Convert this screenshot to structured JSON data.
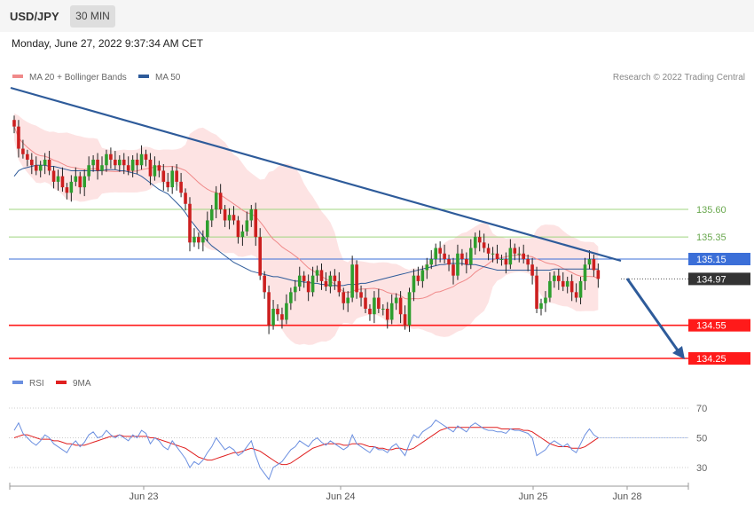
{
  "header": {
    "symbol": "USD/JPY",
    "timeframe": "30 MIN",
    "datetime": "Monday, June 27, 2022 9:37:34 AM CET"
  },
  "colors": {
    "candle_up": "#2e9e2e",
    "candle_down": "#cc1f1f",
    "bollinger_fill": "#fde3e3",
    "ma20": "#f08a8a",
    "ma50": "#2e5b9a",
    "trendline": "#2e5b9a",
    "resistance": "#9fd47f",
    "support": "#ff1a1a",
    "pivot": "#3b6fd8",
    "rsi": "#6b8fe0",
    "rsi_ma": "#e02020",
    "axis_text": "#666666"
  },
  "chart_data": [
    {
      "type": "candlestick",
      "title": "",
      "legend": [
        {
          "label": "MA 20 + Bollinger Bands",
          "color": "#f08a8a"
        },
        {
          "label": "MA 50",
          "color": "#2e5b9a"
        }
      ],
      "credit": "Research © 2022 Trading Central",
      "x_ticks": [
        "Jun 23",
        "Jun 24",
        "Jun 25",
        "Jun 28"
      ],
      "ylim": [
        134.2,
        136.55
      ],
      "levels": [
        {
          "label": "135.60",
          "value": 135.6,
          "kind": "resistance"
        },
        {
          "label": "135.35",
          "value": 135.35,
          "kind": "resistance"
        },
        {
          "label": "135.15",
          "value": 135.15,
          "kind": "pivot"
        },
        {
          "label": "134.97",
          "value": 134.97,
          "kind": "last"
        },
        {
          "label": "134.55",
          "value": 134.55,
          "kind": "support"
        },
        {
          "label": "134.25",
          "value": 134.25,
          "kind": "support"
        }
      ],
      "series": {
        "close": [
          136.35,
          136.15,
          136.1,
          136.05,
          136.0,
          135.95,
          136.0,
          136.05,
          135.95,
          135.85,
          135.9,
          135.8,
          135.75,
          135.85,
          135.9,
          135.8,
          135.9,
          136.0,
          136.05,
          135.95,
          136.0,
          136.1,
          136.05,
          136.0,
          136.05,
          136.0,
          135.95,
          136.05,
          136.0,
          136.1,
          136.05,
          135.9,
          136.0,
          135.95,
          135.85,
          135.8,
          135.95,
          135.85,
          135.75,
          135.65,
          135.3,
          135.35,
          135.3,
          135.35,
          135.5,
          135.6,
          135.75,
          135.6,
          135.5,
          135.55,
          135.5,
          135.35,
          135.4,
          135.5,
          135.6,
          135.35,
          135.0,
          134.85,
          134.55,
          134.7,
          134.65,
          134.6,
          134.75,
          134.85,
          134.9,
          135.0,
          134.95,
          134.85,
          135.0,
          135.05,
          134.95,
          134.9,
          135.0,
          134.95,
          134.85,
          134.75,
          134.8,
          135.1,
          134.85,
          134.8,
          134.7,
          134.65,
          134.8,
          134.7,
          134.7,
          134.6,
          134.75,
          134.8,
          134.65,
          134.55,
          134.85,
          135.0,
          134.95,
          135.05,
          135.1,
          135.15,
          135.25,
          135.2,
          135.15,
          135.1,
          135.0,
          135.2,
          135.15,
          135.1,
          135.25,
          135.35,
          135.3,
          135.25,
          135.2,
          135.2,
          135.15,
          135.15,
          135.1,
          135.25,
          135.2,
          135.2,
          135.15,
          135.1,
          135.0,
          134.7,
          134.75,
          134.8,
          134.95,
          135.0,
          134.95,
          134.9,
          134.95,
          134.85,
          134.8,
          134.95,
          135.1,
          135.15,
          135.05,
          134.97
        ],
        "ma50": [
          135.9,
          135.95,
          135.97,
          135.98,
          135.99,
          136.0,
          136.0,
          136.0,
          135.99,
          135.99,
          135.98,
          135.97,
          135.96,
          135.95,
          135.95,
          135.95,
          135.95,
          135.95,
          135.95,
          135.95,
          135.95,
          135.96,
          135.96,
          135.96,
          135.95,
          135.95,
          135.94,
          135.93,
          135.92,
          135.9,
          135.87,
          135.84,
          135.81,
          135.78,
          135.76,
          135.74,
          135.7,
          135.66,
          135.62,
          135.57,
          135.51,
          135.46,
          135.41,
          135.36,
          135.31,
          135.27,
          135.24,
          135.21,
          135.18,
          135.15,
          135.12,
          135.1,
          135.08,
          135.06,
          135.04,
          135.03,
          135.02,
          135.01,
          135.0,
          134.99,
          134.99,
          134.98,
          134.97,
          134.96,
          134.95,
          134.95,
          134.94,
          134.94,
          134.93,
          134.93,
          134.92,
          134.92,
          134.91,
          134.91,
          134.91,
          134.91,
          134.92,
          134.92,
          134.92,
          134.93,
          134.93,
          134.94,
          134.95,
          134.96,
          134.97,
          134.98,
          134.99,
          135.0,
          135.01,
          135.02,
          135.03,
          135.04,
          135.05,
          135.06,
          135.07,
          135.08,
          135.09,
          135.1,
          135.1,
          135.11,
          135.11,
          135.11,
          135.11,
          135.1,
          135.1,
          135.1,
          135.09,
          135.08,
          135.07,
          135.06,
          135.05,
          135.05,
          135.05,
          135.05,
          135.05,
          135.05,
          135.05,
          135.05,
          135.05,
          135.05,
          135.05,
          135.05,
          135.05,
          135.06,
          135.06,
          135.06,
          135.06,
          135.06,
          135.06,
          135.06,
          135.06,
          135.06,
          135.06,
          135.06
        ],
        "rsi": [
          55,
          60,
          53,
          50,
          47,
          45,
          48,
          52,
          50,
          46,
          44,
          42,
          40,
          45,
          48,
          44,
          47,
          52,
          54,
          50,
          51,
          55,
          52,
          50,
          52,
          50,
          48,
          52,
          50,
          55,
          53,
          46,
          50,
          48,
          44,
          42,
          48,
          44,
          40,
          36,
          30,
          34,
          32,
          35,
          40,
          44,
          50,
          46,
          42,
          44,
          42,
          38,
          40,
          44,
          48,
          38,
          30,
          26,
          22,
          30,
          32,
          34,
          38,
          42,
          44,
          48,
          46,
          44,
          48,
          50,
          47,
          45,
          48,
          46,
          44,
          42,
          44,
          52,
          46,
          44,
          42,
          40,
          44,
          42,
          42,
          40,
          44,
          46,
          42,
          38,
          46,
          52,
          50,
          54,
          56,
          58,
          62,
          60,
          58,
          56,
          54,
          58,
          56,
          54,
          58,
          60,
          58,
          56,
          55,
          55,
          54,
          54,
          53,
          56,
          55,
          55,
          54,
          53,
          50,
          38,
          40,
          42,
          46,
          48,
          46,
          44,
          46,
          42,
          40,
          46,
          52,
          56,
          52,
          50
        ],
        "rsi_ma": [
          50,
          51,
          52,
          52,
          51,
          50,
          49,
          49,
          49,
          48,
          48,
          47,
          46,
          46,
          45,
          45,
          45,
          46,
          47,
          48,
          49,
          50,
          51,
          51,
          52,
          51,
          51,
          51,
          51,
          51,
          51,
          50,
          50,
          49,
          48,
          47,
          46,
          45,
          44,
          43,
          41,
          39,
          37,
          36,
          35,
          35,
          36,
          37,
          38,
          39,
          40,
          40,
          41,
          42,
          43,
          42,
          41,
          39,
          37,
          35,
          33,
          32,
          32,
          33,
          35,
          37,
          39,
          41,
          43,
          44,
          45,
          46,
          46,
          46,
          46,
          45,
          45,
          46,
          46,
          46,
          45,
          44,
          44,
          43,
          43,
          42,
          42,
          43,
          43,
          42,
          42,
          43,
          45,
          47,
          49,
          51,
          53,
          55,
          56,
          57,
          57,
          57,
          57,
          57,
          57,
          57,
          57,
          57,
          57,
          57,
          57,
          56,
          56,
          56,
          56,
          56,
          55,
          55,
          54,
          52,
          50,
          48,
          46,
          45,
          44,
          44,
          44,
          43,
          43,
          43,
          44,
          46,
          48,
          50
        ],
        "rsi_ticks": [
          "70",
          "50",
          "30"
        ],
        "rsi_legend": [
          {
            "label": "RSI",
            "color": "#6b8fe0"
          },
          {
            "label": "9MA",
            "color": "#e02020"
          }
        ]
      }
    }
  ]
}
